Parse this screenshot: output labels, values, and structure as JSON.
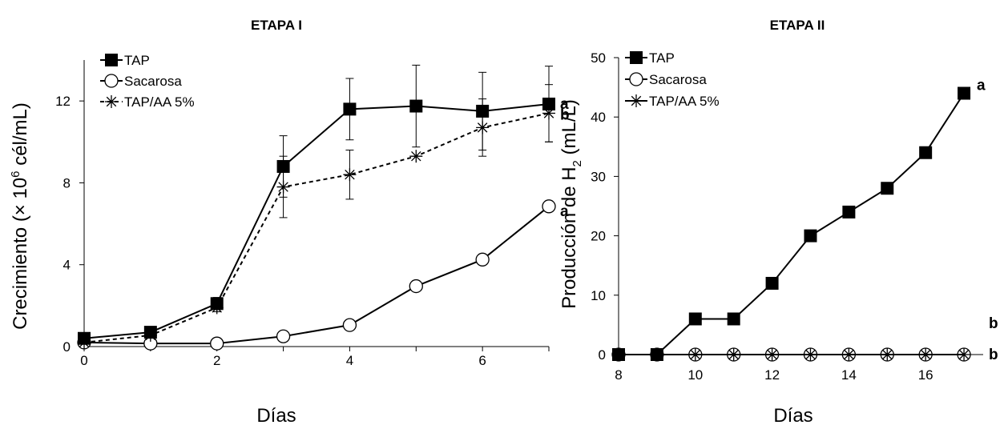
{
  "chart_data": [
    {
      "type": "line",
      "title": "ETAPA I",
      "xlabel": "Días",
      "ylabel": "Crecimiento (× 10⁶ cél/mL)",
      "xlim": [
        0,
        7
      ],
      "ylim": [
        0,
        14
      ],
      "xticks": [
        0,
        2,
        4,
        6
      ],
      "yticks": [
        0,
        4,
        8,
        12
      ],
      "x": [
        0,
        1,
        2,
        3,
        4,
        5,
        6,
        7
      ],
      "grid": false,
      "legend_position": "top-left",
      "series": [
        {
          "name": "TAP",
          "marker": "filled-square",
          "line": "solid",
          "values": [
            0.4,
            0.7,
            2.1,
            8.8,
            11.6,
            11.75,
            11.5,
            11.85
          ],
          "errors": [
            0,
            0,
            0.3,
            1.5,
            1.5,
            2.0,
            1.9,
            1.85
          ]
        },
        {
          "name": "Sacarosa",
          "marker": "open-circle",
          "line": "solid",
          "values": [
            0.2,
            0.15,
            0.15,
            0.5,
            1.05,
            2.95,
            4.25,
            6.85
          ],
          "errors": [
            0,
            0,
            0,
            0,
            0,
            0,
            0,
            0
          ]
        },
        {
          "name": "TAP/AA 5%",
          "marker": "asterisk",
          "line": "dashed",
          "values": [
            0.2,
            0.55,
            1.9,
            7.8,
            8.4,
            9.3,
            10.7,
            11.4
          ],
          "errors": [
            0,
            0,
            0.2,
            1.5,
            1.2,
            0,
            1.4,
            1.4
          ]
        }
      ],
      "annotations": [
        "a",
        "a",
        "b"
      ]
    },
    {
      "type": "line",
      "title": "ETAPA II",
      "xlabel": "Días",
      "ylabel": "Producción de H₂ (mL/L)",
      "xlim": [
        8,
        17.5
      ],
      "ylim": [
        0,
        50
      ],
      "xticks": [
        8,
        10,
        12,
        14,
        16
      ],
      "yticks": [
        0,
        10,
        20,
        30,
        40,
        50
      ],
      "x": [
        8,
        9,
        10,
        11,
        12,
        13,
        14,
        15,
        16,
        17
      ],
      "grid": false,
      "legend_position": "top-left",
      "series": [
        {
          "name": "TAP",
          "marker": "filled-square",
          "line": "solid",
          "values": [
            0,
            0,
            6,
            6,
            12,
            20,
            24,
            28,
            34,
            44
          ]
        },
        {
          "name": "Sacarosa",
          "marker": "open-circle",
          "line": "solid",
          "values": [
            0,
            0,
            0,
            0,
            0,
            0,
            0,
            0,
            0,
            0
          ]
        },
        {
          "name": "TAP/AA 5%",
          "marker": "asterisk",
          "line": "solid",
          "values": [
            0,
            0,
            0,
            0,
            0,
            0,
            0,
            0,
            0,
            0
          ]
        }
      ],
      "annotations": [
        "a",
        "b",
        "b"
      ]
    }
  ],
  "colors": {
    "ink": "#000000",
    "background": "#ffffff"
  }
}
